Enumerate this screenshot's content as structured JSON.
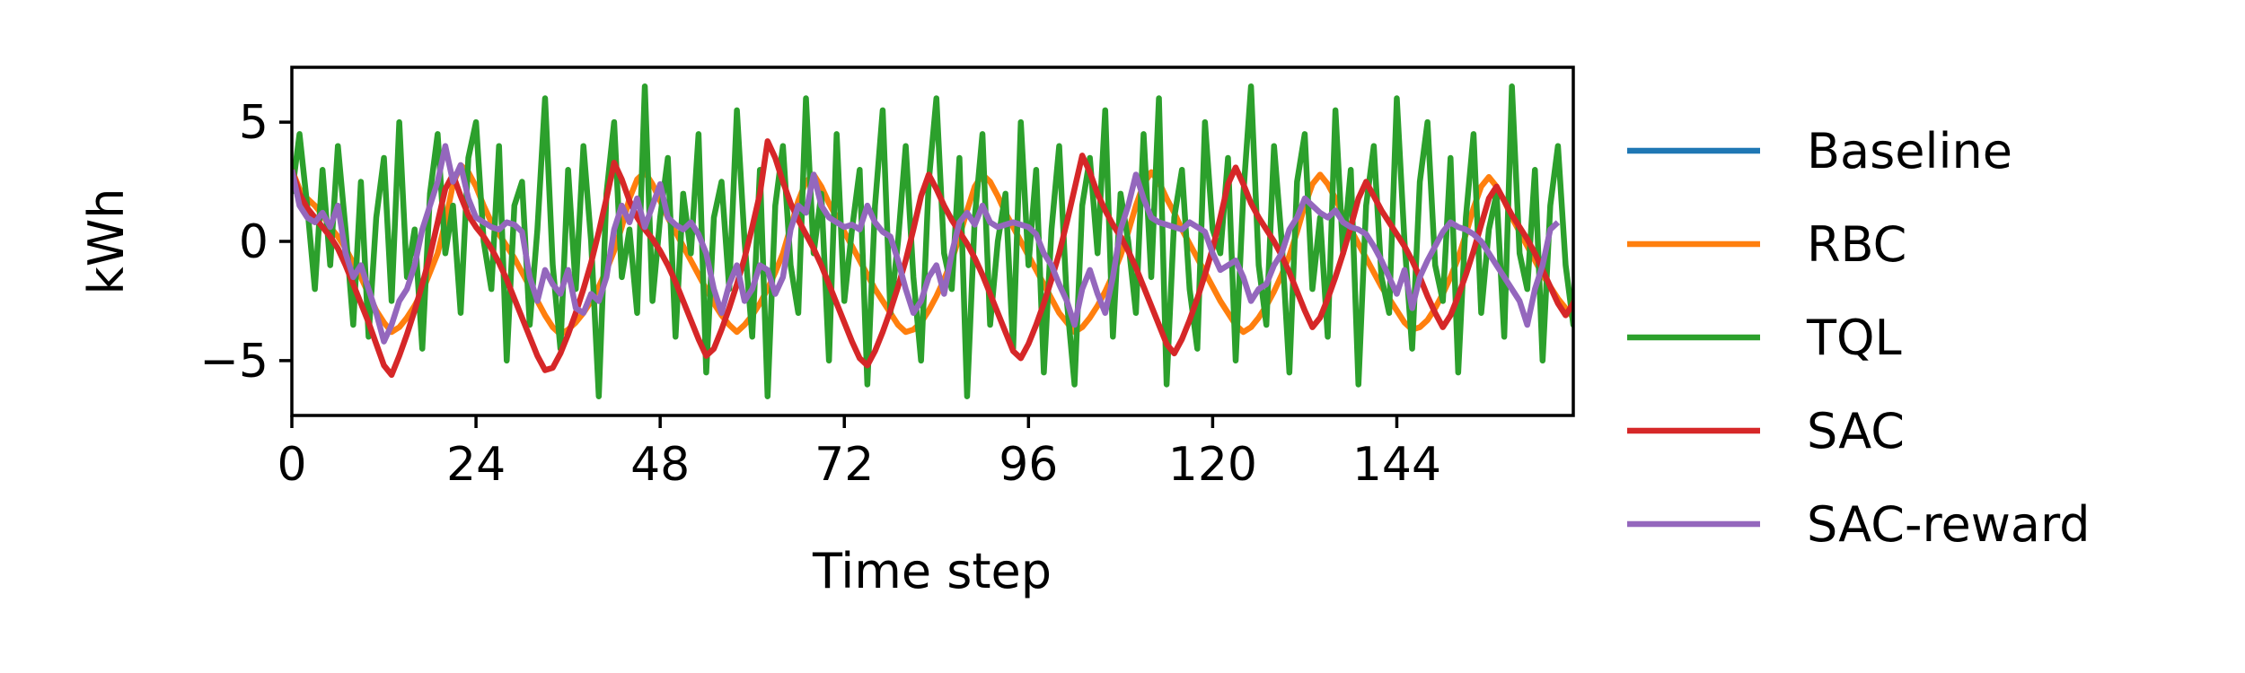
{
  "chart_data": {
    "type": "line",
    "title": "",
    "xlabel": "Time step",
    "ylabel": "kWh",
    "xlim": [
      0,
      167
    ],
    "ylim": [
      -7.3,
      7.3
    ],
    "xticks": [
      0,
      24,
      48,
      72,
      96,
      120,
      144
    ],
    "yticks": [
      -5,
      0,
      5
    ],
    "ytick_labels": [
      "−5",
      "0",
      "5"
    ],
    "grid": false,
    "legend_position": "right, outside plot",
    "series": [
      {
        "name": "Baseline",
        "color": "#1f77b4",
        "values": []
      },
      {
        "name": "RBC",
        "color": "#ff7f0e",
        "values": [
          3,
          2.2,
          1.8,
          1.5,
          1.1,
          0.6,
          0.2,
          -0.3,
          -0.9,
          -1.5,
          -2.2,
          -2.9,
          -3.4,
          -3.8,
          -3.6,
          -3.2,
          -2.7,
          -2.1,
          -1.3,
          -0.5,
          0.8,
          2.4,
          3.2,
          2.9,
          2.3,
          1.5,
          0.8,
          0.3,
          -0.2,
          -0.7,
          -1.3,
          -1.9,
          -2.5,
          -3.1,
          -3.6,
          -3.9,
          -3.7,
          -3.4,
          -3,
          -2.5,
          -1.9,
          -1.2,
          -0.4,
          0.6,
          1.8,
          2.6,
          2.9,
          2.4,
          1.7,
          1,
          0.4,
          -0.2,
          -0.8,
          -1.4,
          -2,
          -2.6,
          -3.1,
          -3.5,
          -3.8,
          -3.5,
          -3.1,
          -2.6,
          -2,
          -1.3,
          -0.5,
          0.6,
          1.7,
          2.5,
          2.8,
          2.3,
          1.6,
          1,
          0.4,
          -0.2,
          -0.8,
          -1.4,
          -2,
          -2.5,
          -3,
          -3.5,
          -3.8,
          -3.7,
          -3.4,
          -2.9,
          -2.3,
          -1.6,
          -0.8,
          0.2,
          1.3,
          2.3,
          2.8,
          2.5,
          1.9,
          1.2,
          0.6,
          0,
          -0.6,
          -1.2,
          -1.8,
          -2.4,
          -3,
          -3.4,
          -3.8,
          -3.6,
          -3.2,
          -2.7,
          -2.1,
          -1.4,
          -0.6,
          0.4,
          1.5,
          2.4,
          2.9,
          2.5,
          1.8,
          1.2,
          0.5,
          -0.1,
          -0.7,
          -1.3,
          -1.9,
          -2.5,
          -3,
          -3.5,
          -3.8,
          -3.6,
          -3.2,
          -2.7,
          -2.1,
          -1.4,
          -0.6,
          0.4,
          1.5,
          2.4,
          2.8,
          2.4,
          1.8,
          1.1,
          0.5,
          -0.1,
          -0.7,
          -1.3,
          -1.9,
          -2.4,
          -2.9,
          -3.4,
          -3.7,
          -3.6,
          -3.3,
          -2.8,
          -2.2,
          -1.5,
          -0.7,
          0.3,
          1.4,
          2.3,
          2.7,
          2.3,
          1.7,
          1,
          0.4,
          -0.2,
          -0.8,
          -1.4,
          -1.9,
          -2.4,
          -2.8,
          -3.2,
          -3.5,
          -3.3
        ]
      },
      {
        "name": "TQL",
        "color": "#2ca02c",
        "values": [
          2,
          4.5,
          1.5,
          -2,
          3,
          -1,
          4,
          0.5,
          -3.5,
          2.5,
          -4,
          1,
          3.5,
          -2.5,
          5,
          -1.5,
          0.5,
          -4.5,
          2,
          4.5,
          -0.5,
          1.5,
          -3,
          3.5,
          5,
          0,
          -2,
          4,
          -5,
          1.5,
          2.5,
          -3.5,
          0.5,
          6,
          -1,
          -4.5,
          3,
          -2,
          4,
          0,
          -6.5,
          2,
          5,
          -1.5,
          0.5,
          -3,
          6.5,
          -2.5,
          1,
          3.5,
          -4,
          2,
          -0.5,
          4.5,
          -5.5,
          1,
          2.5,
          -2,
          5.5,
          0,
          -4,
          3,
          -6.5,
          1.5,
          4,
          -1,
          -3,
          6,
          -0.5,
          2,
          -5,
          4.5,
          -2.5,
          0.5,
          3,
          -6,
          1.5,
          5.5,
          -3,
          0,
          4,
          -1.5,
          -5,
          2.5,
          6,
          -0.5,
          -2,
          3.5,
          -6.5,
          1,
          4.5,
          -3.5,
          0,
          2,
          -4.5,
          5,
          -1,
          3,
          -5.5,
          0.5,
          4,
          -2.5,
          -6,
          1.5,
          3.5,
          -0.5,
          5.5,
          -4,
          2,
          0,
          -3,
          4.5,
          -1.5,
          6,
          -6,
          1,
          3,
          -2,
          -4.5,
          5,
          0.5,
          -0.5,
          3.5,
          -5,
          2,
          6.5,
          -1,
          -3.5,
          4,
          0,
          -5.5,
          2.5,
          4.5,
          -2,
          1,
          -4,
          5.5,
          -0.5,
          3,
          -6,
          1.5,
          4,
          -1.5,
          -3,
          6,
          0,
          -4.5,
          2.5,
          5,
          -1,
          -2.5,
          3.5,
          -5.5,
          1,
          4.5,
          -3,
          0.5,
          2,
          -4,
          6.5,
          -0.5,
          -2,
          3,
          -5,
          1.5,
          4,
          -1,
          -3.5,
          5.5,
          0,
          -4.5,
          2.5,
          4.2,
          0.6
        ]
      },
      {
        "name": "SAC",
        "color": "#d62728",
        "values": [
          3,
          2,
          1.4,
          1,
          0.6,
          0.2,
          -0.3,
          -1,
          -1.8,
          -2.6,
          -3.4,
          -4.3,
          -5.2,
          -5.6,
          -4.8,
          -3.9,
          -2.9,
          -1.8,
          -0.6,
          0.8,
          2.2,
          2.8,
          1.9,
          1.1,
          0.6,
          0.2,
          -0.3,
          -0.9,
          -1.6,
          -2.4,
          -3.2,
          -4,
          -4.8,
          -5.4,
          -5.3,
          -4.7,
          -3.9,
          -3,
          -2,
          -0.9,
          0.4,
          1.8,
          3.3,
          2.6,
          1.7,
          1,
          0.5,
          0.1,
          -0.4,
          -1,
          -1.7,
          -2.5,
          -3.3,
          -4.1,
          -4.8,
          -4.5,
          -3.7,
          -2.8,
          -1.8,
          -0.7,
          0.6,
          2,
          4.2,
          3.5,
          2.5,
          1.6,
          0.9,
          0.3,
          -0.3,
          -1,
          -1.8,
          -2.6,
          -3.4,
          -4.2,
          -4.9,
          -5.2,
          -4.6,
          -3.8,
          -2.9,
          -1.9,
          -0.8,
          0.5,
          1.9,
          2.8,
          2.2,
          1.5,
          0.9,
          0.4,
          -0.1,
          -0.7,
          -1.4,
          -2.2,
          -3,
          -3.8,
          -4.6,
          -4.9,
          -4.3,
          -3.5,
          -2.6,
          -1.6,
          -0.5,
          0.8,
          2.2,
          3.6,
          2.9,
          2,
          1.3,
          0.7,
          0.2,
          -0.4,
          -1.1,
          -1.9,
          -2.7,
          -3.5,
          -4.3,
          -4.7,
          -4.1,
          -3.3,
          -2.4,
          -1.4,
          -0.3,
          1,
          2.4,
          3.1,
          2.4,
          1.6,
          1,
          0.5,
          0,
          -0.6,
          -1.3,
          -2.1,
          -2.9,
          -3.6,
          -3.2,
          -2.4,
          -1.5,
          -0.5,
          0.6,
          1.8,
          2.5,
          1.9,
          1.3,
          0.8,
          0.3,
          -0.2,
          -0.8,
          -1.5,
          -2.3,
          -3,
          -3.6,
          -3.1,
          -2.3,
          -1.4,
          -0.4,
          0.7,
          1.8,
          2.3,
          1.7,
          1.1,
          0.6,
          0.1,
          -0.5,
          -1.2,
          -1.9,
          -2.6,
          -3.1,
          -2.6,
          -1.8,
          -0.9,
          0.2,
          0.8
        ]
      },
      {
        "name": "SAC-reward",
        "color": "#9467bd",
        "values": [
          3,
          1.5,
          1,
          0.8,
          1.2,
          0.6,
          1.5,
          -0.5,
          -1.5,
          -1,
          -2,
          -3,
          -4.2,
          -3.5,
          -2.5,
          -2,
          -1,
          0.5,
          1.5,
          2.5,
          4,
          2.5,
          3.2,
          1.8,
          1,
          0.8,
          0.6,
          0.5,
          0.8,
          0.7,
          0.4,
          -1.5,
          -2.5,
          -1.2,
          -1.8,
          -2.2,
          -1.2,
          -2.8,
          -3,
          -2.2,
          -2.5,
          -1.5,
          0.5,
          1.5,
          0.8,
          1.8,
          0.6,
          1.5,
          2.4,
          1,
          0.7,
          0.5,
          0.8,
          0.3,
          -0.5,
          -2,
          -3,
          -1.8,
          -1,
          -2.5,
          -2,
          -1,
          -1.2,
          -2.2,
          -1.5,
          0.5,
          1.5,
          1.2,
          2.8,
          1.5,
          1,
          0.8,
          0.6,
          0.7,
          0.5,
          1.5,
          0.8,
          0.4,
          0.2,
          -0.8,
          -2,
          -3,
          -2.5,
          -1.5,
          -1,
          -2.2,
          -0.5,
          0.8,
          1.2,
          0.7,
          1.5,
          0.8,
          0.6,
          0.7,
          0.8,
          0.7,
          0.6,
          0.3,
          -0.5,
          -1,
          -1.8,
          -2.5,
          -3.5,
          -2,
          -1.2,
          -2.2,
          -3,
          -1.5,
          0.5,
          1.5,
          2.8,
          1.8,
          1,
          0.8,
          0.7,
          0.6,
          0.5,
          0.8,
          0.6,
          0.4,
          -0.5,
          -1.2,
          -1,
          -0.8,
          -1.5,
          -2.5,
          -2,
          -1.8,
          -1,
          -0.5,
          0.5,
          1,
          1.8,
          1.5,
          1.2,
          1,
          1.3,
          0.8,
          0.6,
          0.5,
          0.3,
          -0.2,
          -0.8,
          -1.5,
          -2.2,
          -1.2,
          -2.8,
          -1.5,
          -0.8,
          -0.2,
          0.4,
          0.8,
          0.6,
          0.5,
          0.3,
          0,
          -0.5,
          -1,
          -1.5,
          -2,
          -2.5,
          -3.5,
          -2,
          -1,
          0.5,
          0.8
        ]
      }
    ]
  }
}
